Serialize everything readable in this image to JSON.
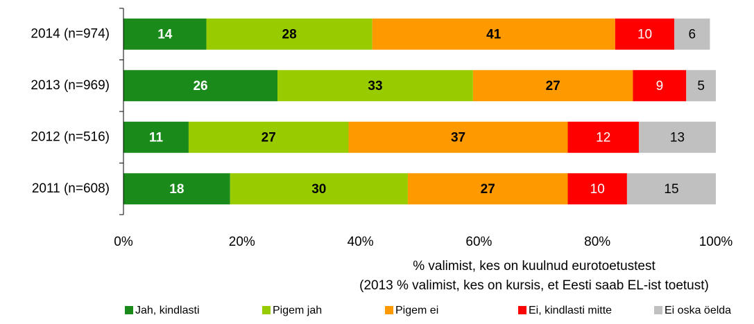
{
  "chart_data": {
    "type": "stacked_bar_horizontal",
    "categories": [
      "2014 (n=974)",
      "2013 (n=969)",
      "2012 (n=516)",
      "2011 (n=608)"
    ],
    "series": [
      {
        "name": "Jah, kindlasti",
        "color": "#1a8a1a",
        "label_color": "#ffffff",
        "label_bold": true,
        "values": [
          14,
          26,
          11,
          18
        ]
      },
      {
        "name": "Pigem jah",
        "color": "#99cc00",
        "label_color": "#000000",
        "label_bold": true,
        "values": [
          28,
          33,
          27,
          30
        ]
      },
      {
        "name": "Pigem ei",
        "color": "#ff9900",
        "label_color": "#000000",
        "label_bold": true,
        "values": [
          41,
          27,
          37,
          27
        ]
      },
      {
        "name": "Ei, kindlasti mitte",
        "color": "#ff0000",
        "label_color": "#ffffff",
        "label_bold": false,
        "values": [
          10,
          9,
          12,
          10
        ]
      },
      {
        "name": "Ei oska öelda",
        "color": "#c0c0c0",
        "label_color": "#000000",
        "label_bold": false,
        "values": [
          6,
          5,
          13,
          15
        ]
      }
    ],
    "xlim": [
      0,
      100
    ],
    "xticks": [
      {
        "value": 0,
        "label": "0%"
      },
      {
        "value": 20,
        "label": "20%"
      },
      {
        "value": 40,
        "label": "40%"
      },
      {
        "value": 60,
        "label": "60%"
      },
      {
        "value": 80,
        "label": "80%"
      },
      {
        "value": 100,
        "label": "100%"
      }
    ],
    "x_label": [
      "% valimist, kes on kuulnud eurotoetustest",
      "(2013 % valimist, kes on kursis, et Eesti saab EL-ist toetust)"
    ],
    "legend": "bottom"
  }
}
